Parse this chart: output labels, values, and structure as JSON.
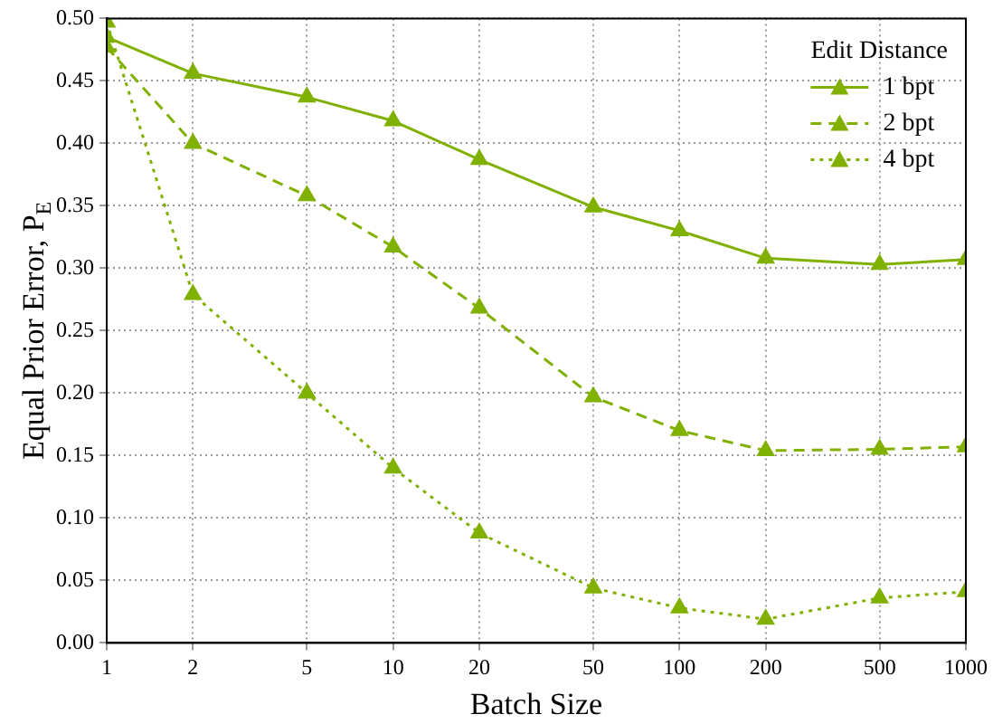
{
  "chart_data": {
    "type": "line",
    "xlabel": "Batch Size",
    "ylabel": "Equal Prior Error, P$_{E}$",
    "legend_title": "Edit Distance",
    "legend": "top right",
    "grid": true,
    "marker": "triangle",
    "log": "x",
    "x": [
      1,
      2,
      5,
      10,
      20,
      50,
      100,
      200,
      500,
      1000
    ],
    "xlim": [
      1,
      1000
    ],
    "xticks": [
      1,
      2,
      5,
      10,
      20,
      50,
      100,
      200,
      500,
      1000
    ],
    "ylim": [
      0,
      0.5
    ],
    "yticks": [
      {
        "value": 0,
        "label": "0.00"
      },
      {
        "value": 0.05,
        "label": "0.05"
      },
      {
        "value": 0.1,
        "label": "0.10"
      },
      {
        "value": 0.15,
        "label": "0.15"
      },
      {
        "value": 0.2,
        "label": "0.20"
      },
      {
        "value": 0.25,
        "label": "0.25"
      },
      {
        "value": 0.3,
        "label": "0.30"
      },
      {
        "value": 0.35,
        "label": "0.35"
      },
      {
        "value": 0.4,
        "label": "0.40"
      },
      {
        "value": 0.45,
        "label": "0.45"
      },
      {
        "value": 0.5,
        "label": "0.50"
      }
    ],
    "series": [
      {
        "name": "1 bpt",
        "color": "#80b000",
        "line_style": "solid",
        "values": [
          0.485,
          0.456,
          0.437,
          0.418,
          0.387,
          0.349,
          0.33,
          0.308,
          0.303,
          0.307
        ]
      },
      {
        "name": "2 bpt",
        "color": "#80b000",
        "line_style": "dashed",
        "values": [
          0.477,
          0.4,
          0.358,
          0.317,
          0.268,
          0.197,
          0.17,
          0.154,
          0.155,
          0.157
        ]
      },
      {
        "name": "4 bpt",
        "color": "#80b000",
        "line_style": "dotted",
        "values": [
          0.497,
          0.279,
          0.2,
          0.14,
          0.088,
          0.044,
          0.028,
          0.019,
          0.036,
          0.041
        ]
      }
    ]
  }
}
